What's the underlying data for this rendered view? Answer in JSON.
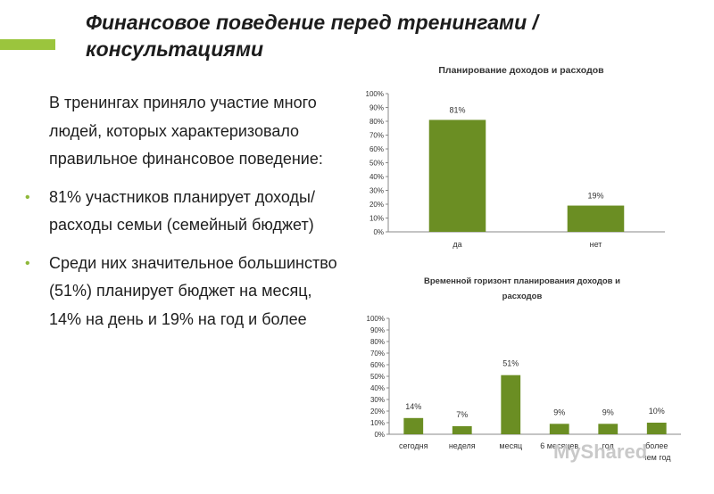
{
  "slide": {
    "title_line1": "Финансовое поведение перед тренингами /",
    "title_line2": "консультациями",
    "accent_color": "#9bc53d"
  },
  "body": {
    "intro": "В тренингах приняло участие много людей, которых характеризовало правильное финансовое поведение:",
    "bullets": [
      "81% участников планирует доходы/расходы семьи (семейный бюджет)",
      "Среди них значительное большинство (51%) планирует бюджет на месяц, 14% на день и 19% на год и более"
    ],
    "bullet_color": "#8fb83a"
  },
  "watermark": "MyShared",
  "chart_data": [
    {
      "type": "bar",
      "title": "Планирование доходов и расходов",
      "categories": [
        "да",
        "нет"
      ],
      "values": [
        81,
        19
      ],
      "value_labels": [
        "81%",
        "19%"
      ],
      "yticks": [
        "0%",
        "10%",
        "20%",
        "30%",
        "40%",
        "50%",
        "60%",
        "70%",
        "80%",
        "90%",
        "100%"
      ],
      "ylim": [
        0,
        100
      ],
      "bar_color": "#6b8e23",
      "grid": false
    },
    {
      "type": "bar",
      "title_lines": [
        "Временной горизонт планирования доходов и",
        "расходов"
      ],
      "categories": [
        "сегодня",
        "неделя",
        "месяц",
        "6 месяцев",
        "год",
        "более чем год"
      ],
      "values": [
        14,
        7,
        51,
        9,
        9,
        10
      ],
      "value_labels": [
        "14%",
        "7%",
        "51%",
        "9%",
        "9%",
        "10%"
      ],
      "yticks": [
        "0%",
        "10%",
        "20%",
        "30%",
        "40%",
        "50%",
        "60%",
        "70%",
        "80%",
        "90%",
        "100%"
      ],
      "ylim": [
        0,
        100
      ],
      "bar_color": "#6b8e23",
      "grid": false
    }
  ]
}
